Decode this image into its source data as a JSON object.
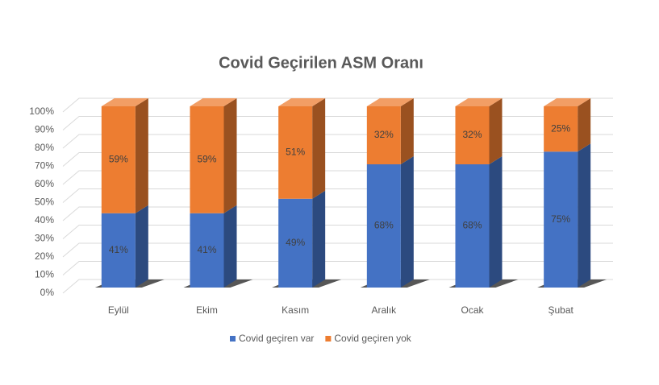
{
  "chart_data": {
    "type": "stacked_bar_3d",
    "title": "Covid Geçirilen ASM Oranı",
    "categories": [
      "Eylül",
      "Ekim",
      "Kasım",
      "Aralık",
      "Ocak",
      "Şubat"
    ],
    "series": [
      {
        "name": "Covid geçiren var",
        "color": "#4472c4",
        "values": [
          41,
          41,
          49,
          68,
          68,
          75
        ],
        "value_labels": [
          "41%",
          "41%",
          "49%",
          "68%",
          "68%",
          "75%"
        ]
      },
      {
        "name": "Covid geçiren yok",
        "color": "#ed7d31",
        "values": [
          59,
          59,
          51,
          32,
          32,
          25
        ],
        "value_labels": [
          "59%",
          "59%",
          "51%",
          "32%",
          "32%",
          "25%"
        ]
      }
    ],
    "ylim": [
      0,
      100
    ],
    "yticks": [
      {
        "value": 0,
        "label": "0%"
      },
      {
        "value": 10,
        "label": "10%"
      },
      {
        "value": 20,
        "label": "20%"
      },
      {
        "value": 30,
        "label": "30%"
      },
      {
        "value": 40,
        "label": "40%"
      },
      {
        "value": 50,
        "label": "50%"
      },
      {
        "value": 60,
        "label": "60%"
      },
      {
        "value": 70,
        "label": "70%"
      },
      {
        "value": 80,
        "label": "80%"
      },
      {
        "value": 90,
        "label": "90%"
      },
      {
        "value": 100,
        "label": "100%"
      }
    ],
    "grid": true,
    "legend": "bottom"
  }
}
